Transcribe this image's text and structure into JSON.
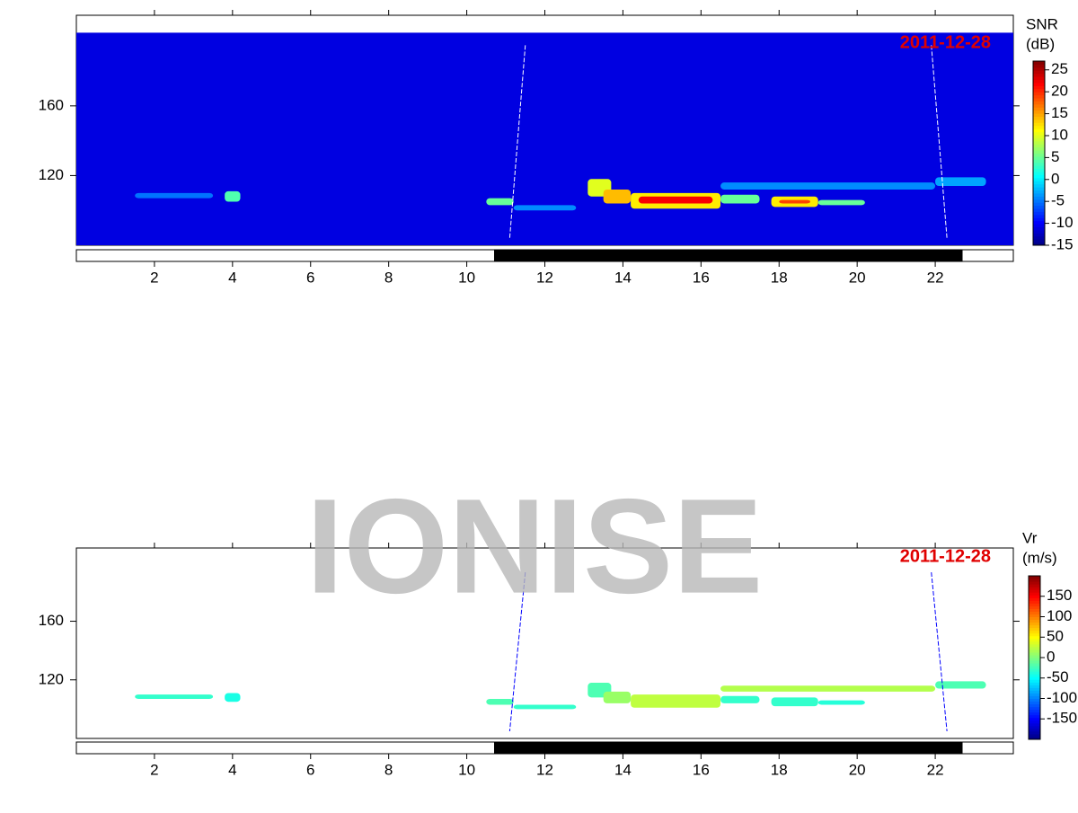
{
  "watermark": "IONISE",
  "chart_data": [
    {
      "type": "heatmap",
      "colorbar_title": "SNR",
      "colorbar_unit": "(dB)",
      "annotation": "2011-12-28",
      "xlim": [
        0,
        24
      ],
      "xticks": [
        2,
        4,
        6,
        8,
        10,
        12,
        14,
        16,
        18,
        20,
        22
      ],
      "ylim": [
        80,
        212
      ],
      "yticks": [
        120,
        160
      ],
      "range_extent": [
        80,
        202
      ],
      "clim": [
        -15,
        27
      ],
      "cticks": [
        25,
        20,
        15,
        10,
        5,
        0,
        -5,
        -10,
        -15
      ],
      "background": -11,
      "dark_period": [
        10.7,
        22.7
      ],
      "cells": [
        {
          "x": [
            1.5,
            3.5
          ],
          "y": [
            107,
            110
          ],
          "value": -5
        },
        {
          "x": [
            3.8,
            4.2
          ],
          "y": [
            105,
            111
          ],
          "value": 4
        },
        {
          "x": [
            10.5,
            11.2
          ],
          "y": [
            103,
            107
          ],
          "value": 5
        },
        {
          "x": [
            11.2,
            12.8
          ],
          "y": [
            100,
            103
          ],
          "value": -4
        },
        {
          "x": [
            16.5,
            22
          ],
          "y": [
            112,
            116
          ],
          "value": -4
        },
        {
          "x": [
            22,
            23.3
          ],
          "y": [
            114,
            119
          ],
          "value": -3
        },
        {
          "x": [
            13.1,
            13.7
          ],
          "y": [
            108,
            118
          ],
          "value": 10
        },
        {
          "x": [
            13.5,
            14.2
          ],
          "y": [
            104,
            112
          ],
          "value": 14
        },
        {
          "x": [
            14.2,
            16.5
          ],
          "y": [
            101,
            110
          ],
          "value": 12
        },
        {
          "x": [
            14.4,
            16.3
          ],
          "y": [
            104,
            108
          ],
          "value": 22
        },
        {
          "x": [
            16.5,
            17.5
          ],
          "y": [
            104,
            109
          ],
          "value": 5
        },
        {
          "x": [
            17.8,
            19.0
          ],
          "y": [
            102,
            108
          ],
          "value": 12
        },
        {
          "x": [
            18.0,
            18.8
          ],
          "y": [
            104,
            106
          ],
          "value": 19
        },
        {
          "x": [
            19.0,
            20.2
          ],
          "y": [
            103,
            106
          ],
          "value": 5
        }
      ]
    },
    {
      "type": "heatmap",
      "colorbar_title": "Vr",
      "colorbar_unit": "(m/s)",
      "annotation": "2011-12-28",
      "xlim": [
        0,
        24
      ],
      "xticks": [
        2,
        4,
        6,
        8,
        10,
        12,
        14,
        16,
        18,
        20,
        22
      ],
      "ylim": [
        80,
        210
      ],
      "yticks": [
        120,
        160
      ],
      "range_extent": [
        80,
        202
      ],
      "clim": [
        -200,
        200
      ],
      "cticks": [
        150,
        100,
        50,
        0,
        -50,
        -100,
        -150
      ],
      "background": null,
      "dark_period": [
        10.7,
        22.7
      ],
      "cells": [
        {
          "x": [
            1.5,
            3.5
          ],
          "y": [
            107,
            110
          ],
          "value": -30
        },
        {
          "x": [
            3.8,
            4.2
          ],
          "y": [
            105,
            111
          ],
          "value": -40
        },
        {
          "x": [
            10.5,
            11.2
          ],
          "y": [
            103,
            107
          ],
          "value": -20
        },
        {
          "x": [
            11.2,
            12.8
          ],
          "y": [
            100,
            103
          ],
          "value": -30
        },
        {
          "x": [
            16.5,
            22
          ],
          "y": [
            112,
            116
          ],
          "value": 20
        },
        {
          "x": [
            22,
            23.3
          ],
          "y": [
            114,
            119
          ],
          "value": -20
        },
        {
          "x": [
            13.1,
            13.7
          ],
          "y": [
            108,
            118
          ],
          "value": -20
        },
        {
          "x": [
            13.5,
            14.2
          ],
          "y": [
            104,
            112
          ],
          "value": 10
        },
        {
          "x": [
            14.2,
            16.5
          ],
          "y": [
            101,
            110
          ],
          "value": 25
        },
        {
          "x": [
            16.5,
            17.5
          ],
          "y": [
            104,
            109
          ],
          "value": -30
        },
        {
          "x": [
            17.8,
            19.0
          ],
          "y": [
            102,
            108
          ],
          "value": -30
        },
        {
          "x": [
            19.0,
            20.2
          ],
          "y": [
            103,
            106
          ],
          "value": -35
        }
      ]
    }
  ]
}
